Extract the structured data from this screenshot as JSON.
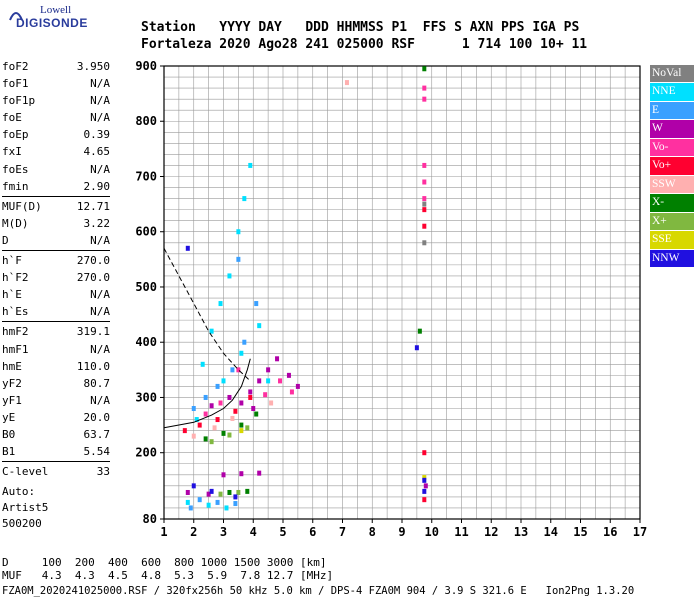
{
  "logo": {
    "top": "Lowell",
    "bottom": "DIGISONDE"
  },
  "header": {
    "line1": "Station   YYYY DAY   DDD HHMMSS P1  FFS S AXN PPS IGA PS",
    "line2": "Fortaleza 2020 Ago28 241 025000 RSF      1 714 100 10+ 11"
  },
  "params": [
    {
      "name": "foF2",
      "value": "3.950"
    },
    {
      "name": "foF1",
      "value": "N/A"
    },
    {
      "name": "foF1p",
      "value": "N/A"
    },
    {
      "name": "foE",
      "value": "N/A"
    },
    {
      "name": "foEp",
      "value": "0.39"
    },
    {
      "name": "fxI",
      "value": "4.65"
    },
    {
      "name": "foEs",
      "value": "N/A"
    },
    {
      "name": "fmin",
      "value": "2.90"
    },
    {
      "name": "MUF(D)",
      "value": "12.71"
    },
    {
      "name": "M(D)",
      "value": "3.22"
    },
    {
      "name": "D",
      "value": "N/A"
    },
    {
      "name": "h`F",
      "value": "270.0"
    },
    {
      "name": "h`F2",
      "value": "270.0"
    },
    {
      "name": "h`E",
      "value": "N/A"
    },
    {
      "name": "h`Es",
      "value": "N/A"
    },
    {
      "name": "hmF2",
      "value": "319.1"
    },
    {
      "name": "hmF1",
      "value": "N/A"
    },
    {
      "name": "hmE",
      "value": "110.0"
    },
    {
      "name": "yF2",
      "value": "80.7"
    },
    {
      "name": "yF1",
      "value": "N/A"
    },
    {
      "name": "yE",
      "value": "20.0"
    },
    {
      "name": "B0",
      "value": "63.7"
    },
    {
      "name": "B1",
      "value": "5.54"
    },
    {
      "name": "C-level",
      "value": "33"
    }
  ],
  "auto": [
    "Auto:",
    "Artist5",
    "500200"
  ],
  "legend": [
    {
      "label": "NoVal",
      "color": "#808080"
    },
    {
      "label": "NNE",
      "color": "#00e0ff"
    },
    {
      "label": "E",
      "color": "#3aa0ff"
    },
    {
      "label": "W",
      "color": "#b000a8"
    },
    {
      "label": "Vo-",
      "color": "#ff30a0"
    },
    {
      "label": "Vo+",
      "color": "#ff0030"
    },
    {
      "label": "SSW",
      "color": "#ffb0b0"
    },
    {
      "label": "X-",
      "color": "#008000"
    },
    {
      "label": "X+",
      "color": "#80b840"
    },
    {
      "label": "SSE",
      "color": "#d8d800"
    },
    {
      "label": "NNW",
      "color": "#2010e0"
    }
  ],
  "footer": {
    "d_line": "D     100  200  400  600  800 1000 1500 3000 [km]",
    "muf_line": "MUF   4.3  4.3  4.5  4.8  5.3  5.9  7.8 12.7 [MHz]",
    "file_line": "FZA0M_2020241025000.RSF / 320fx256h 50 kHz 5.0 km / DPS-4 FZA0M 904 / 3.9 S 321.6 E   Ion2Png 1.3.20"
  },
  "chart_data": {
    "type": "scatter",
    "xlim": [
      1,
      17
    ],
    "ylim": [
      80,
      900
    ],
    "x_ticks": [
      1,
      2,
      3,
      4,
      5,
      6,
      7,
      8,
      9,
      10,
      11,
      12,
      13,
      14,
      15,
      16,
      17
    ],
    "y_ticks": [
      80,
      200,
      300,
      400,
      500,
      600,
      700,
      800,
      900
    ],
    "grid": true,
    "xlabel": "",
    "ylabel": "",
    "legend_position": "right",
    "series": [
      {
        "name": "NNE",
        "points": [
          [
            2.3,
            360
          ],
          [
            2.6,
            420
          ],
          [
            2.9,
            470
          ],
          [
            3.2,
            520
          ],
          [
            3.5,
            600
          ],
          [
            3.7,
            660
          ],
          [
            3.9,
            720
          ],
          [
            2.1,
            260
          ],
          [
            3.0,
            330
          ],
          [
            3.6,
            380
          ],
          [
            4.2,
            430
          ],
          [
            4.5,
            330
          ],
          [
            1.8,
            110
          ],
          [
            2.5,
            105
          ],
          [
            3.1,
            100
          ]
        ]
      },
      {
        "name": "E",
        "points": [
          [
            2.0,
            280
          ],
          [
            2.4,
            300
          ],
          [
            2.8,
            320
          ],
          [
            3.3,
            350
          ],
          [
            3.7,
            400
          ],
          [
            4.1,
            470
          ],
          [
            3.5,
            550
          ],
          [
            2.2,
            115
          ],
          [
            2.8,
            110
          ],
          [
            3.4,
            108
          ],
          [
            1.9,
            100
          ]
        ]
      },
      {
        "name": "W",
        "points": [
          [
            3.9,
            310
          ],
          [
            4.2,
            330
          ],
          [
            4.5,
            350
          ],
          [
            4.8,
            370
          ],
          [
            5.2,
            340
          ],
          [
            5.5,
            320
          ],
          [
            4.0,
            280
          ],
          [
            3.6,
            290
          ],
          [
            3.2,
            300
          ],
          [
            2.6,
            285
          ],
          [
            3.0,
            160
          ],
          [
            3.6,
            162
          ],
          [
            4.2,
            163
          ],
          [
            1.8,
            128
          ],
          [
            2.5,
            125
          ],
          [
            9.8,
            140
          ]
        ]
      },
      {
        "name": "Vo-",
        "points": [
          [
            9.75,
            720
          ],
          [
            9.75,
            690
          ],
          [
            9.75,
            660
          ],
          [
            9.75,
            840
          ],
          [
            9.75,
            860
          ],
          [
            2.4,
            270
          ],
          [
            2.9,
            290
          ],
          [
            3.5,
            350
          ],
          [
            4.4,
            305
          ],
          [
            4.9,
            330
          ],
          [
            5.3,
            310
          ]
        ]
      },
      {
        "name": "Vo+",
        "points": [
          [
            9.75,
            640
          ],
          [
            9.75,
            610
          ],
          [
            9.75,
            200
          ],
          [
            9.75,
            115
          ],
          [
            2.2,
            250
          ],
          [
            2.8,
            260
          ],
          [
            3.4,
            275
          ],
          [
            3.9,
            300
          ],
          [
            1.7,
            240
          ]
        ]
      },
      {
        "name": "SSW",
        "points": [
          [
            7.15,
            870
          ],
          [
            2.0,
            230
          ],
          [
            2.7,
            245
          ],
          [
            3.3,
            262
          ],
          [
            4.6,
            290
          ]
        ]
      },
      {
        "name": "X-",
        "points": [
          [
            9.75,
            895
          ],
          [
            3.0,
            235
          ],
          [
            3.6,
            250
          ],
          [
            4.1,
            270
          ],
          [
            2.4,
            225
          ],
          [
            9.6,
            420
          ],
          [
            3.2,
            128
          ],
          [
            3.8,
            130
          ]
        ]
      },
      {
        "name": "X+",
        "points": [
          [
            2.6,
            220
          ],
          [
            3.2,
            232
          ],
          [
            3.8,
            245
          ],
          [
            2.9,
            125
          ],
          [
            3.5,
            128
          ]
        ]
      },
      {
        "name": "SSE",
        "points": [
          [
            9.75,
            155
          ],
          [
            3.6,
            240
          ]
        ]
      },
      {
        "name": "NNW",
        "points": [
          [
            1.8,
            570
          ],
          [
            9.75,
            150
          ],
          [
            9.75,
            130
          ],
          [
            2.0,
            140
          ],
          [
            2.6,
            130
          ],
          [
            3.4,
            120
          ],
          [
            9.5,
            390
          ]
        ]
      },
      {
        "name": "NoVal",
        "points": [
          [
            9.75,
            650
          ],
          [
            9.75,
            580
          ]
        ]
      }
    ],
    "profile_curve": [
      [
        1.0,
        245
      ],
      [
        2.0,
        255
      ],
      [
        2.6,
        268
      ],
      [
        3.0,
        280
      ],
      [
        3.3,
        295
      ],
      [
        3.6,
        320
      ],
      [
        3.8,
        350
      ],
      [
        3.9,
        370
      ]
    ],
    "profile_dashed": [
      [
        1.0,
        570
      ],
      [
        1.5,
        520
      ],
      [
        2.0,
        470
      ],
      [
        2.5,
        420
      ],
      [
        3.0,
        380
      ],
      [
        3.5,
        350
      ],
      [
        3.9,
        330
      ]
    ]
  }
}
